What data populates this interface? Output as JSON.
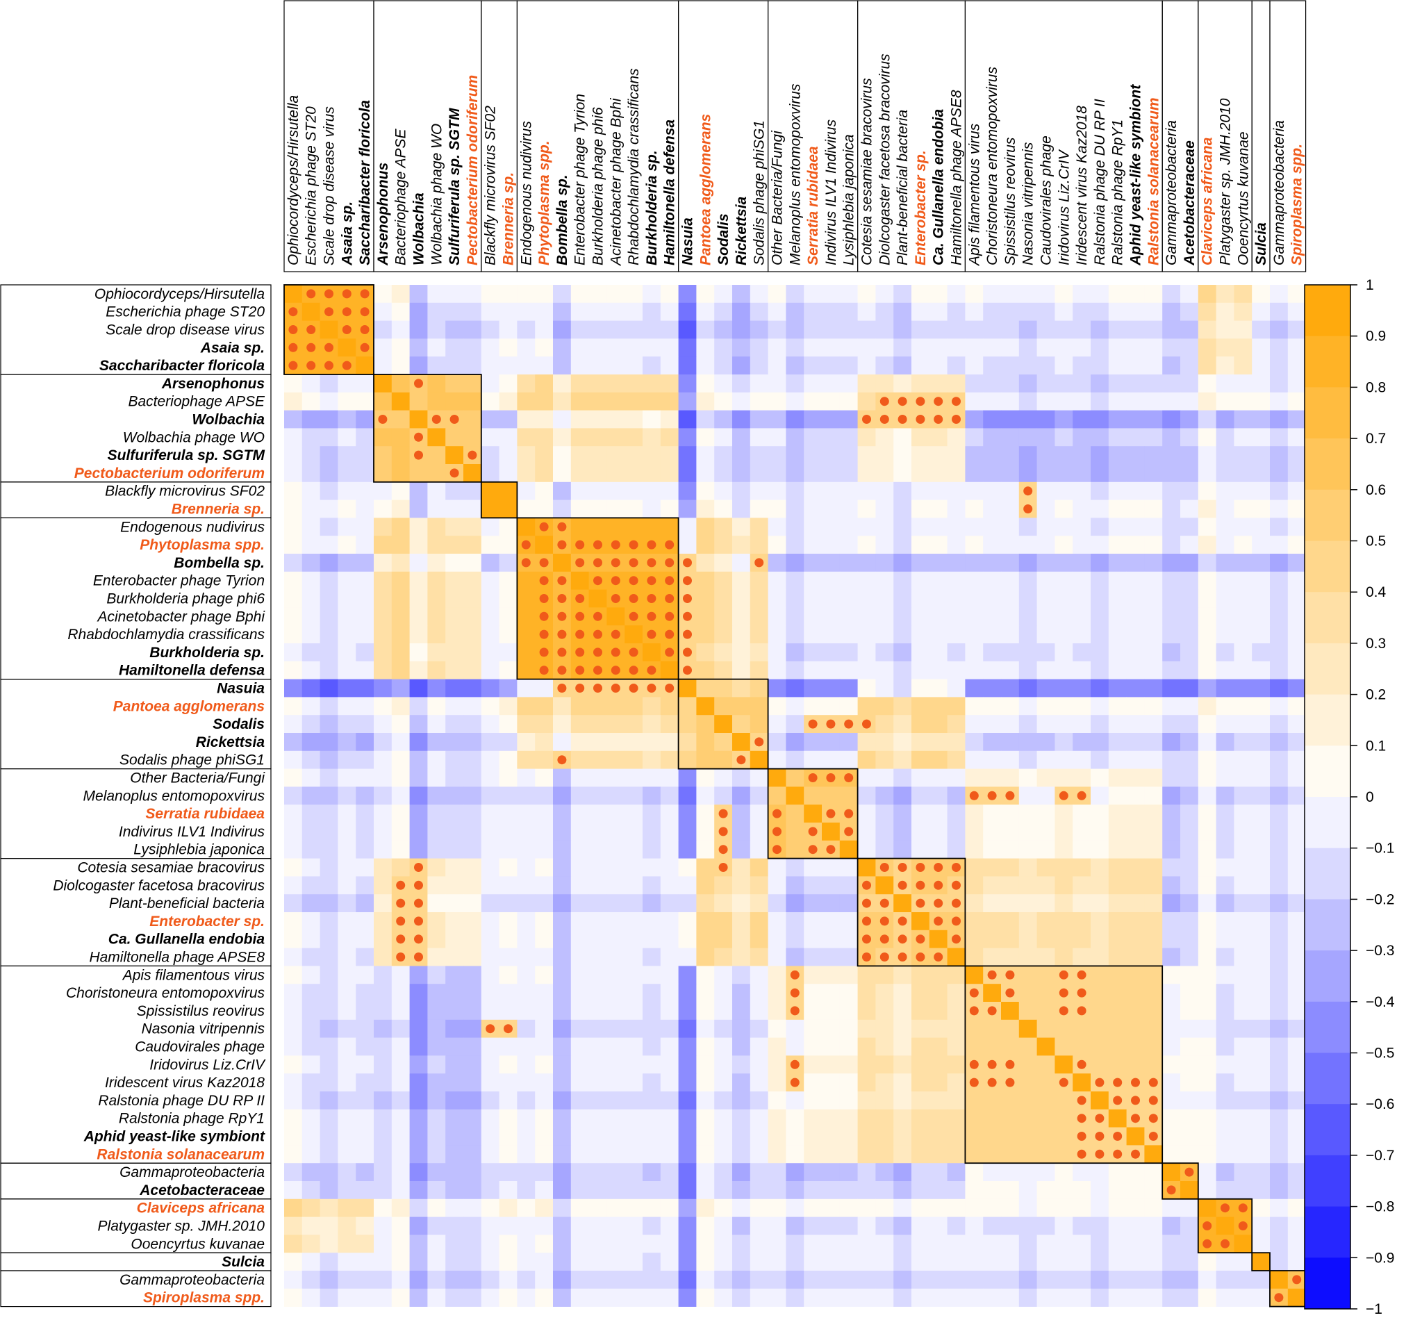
{
  "chart_data": {
    "type": "heatmap",
    "title": "",
    "value_range": [
      -1,
      1
    ],
    "colorbar": {
      "ticks": [
        1,
        0.9,
        0.8,
        0.7,
        0.6,
        0.5,
        0.4,
        0.3,
        0.2,
        0.1,
        0,
        -0.1,
        -0.2,
        -0.3,
        -0.4,
        -0.5,
        -0.6,
        -0.7,
        -0.8,
        -0.9,
        -1
      ],
      "tick_labels": [
        "1",
        "0.9",
        "0.8",
        "0.7",
        "0.6",
        "0.5",
        "0.4",
        "0.3",
        "0.2",
        "0.1",
        "0",
        "−0.1",
        "−0.2",
        "−0.3",
        "−0.4",
        "−0.5",
        "−0.6",
        "−0.7",
        "−0.8",
        "−0.9",
        "−1"
      ],
      "steps": 20,
      "low_color": "#0000ff",
      "mid_color": "#ffffff",
      "high_color": "#ffa500",
      "position": "right"
    },
    "label_colors": {
      "normal": "#000000",
      "highlight": "#f05a1a"
    },
    "significance_dot_color": "#f05a1a",
    "labels": [
      {
        "name": "Ophiocordyceps/Hirsutella",
        "style": "italic",
        "color": "normal"
      },
      {
        "name": "Escherichia phage ST20",
        "style": "italic",
        "color": "normal"
      },
      {
        "name": "Scale drop disease virus",
        "style": "italic",
        "color": "normal"
      },
      {
        "name": "Asaia sp.",
        "style": "bold-italic",
        "color": "normal"
      },
      {
        "name": "Saccharibacter floricola",
        "style": "bold-italic",
        "color": "normal"
      },
      {
        "name": "Arsenophonus",
        "style": "bold-italic",
        "color": "normal"
      },
      {
        "name": "Bacteriophage APSE",
        "style": "italic",
        "color": "normal"
      },
      {
        "name": "Wolbachia",
        "style": "bold-italic",
        "color": "normal"
      },
      {
        "name": "Wolbachia phage WO",
        "style": "italic",
        "color": "normal"
      },
      {
        "name": "Sulfuriferula sp. SGTM",
        "style": "bold-italic",
        "color": "normal"
      },
      {
        "name": "Pectobacterium odoriferum",
        "style": "bold-italic",
        "color": "highlight"
      },
      {
        "name": "Blackfly microvirus SF02",
        "style": "italic",
        "color": "normal"
      },
      {
        "name": "Brenneria sp.",
        "style": "bold-italic",
        "color": "highlight"
      },
      {
        "name": "Endogenous nudivirus",
        "style": "italic",
        "color": "normal"
      },
      {
        "name": "Phytoplasma spp.",
        "style": "bold-italic",
        "color": "highlight"
      },
      {
        "name": "Bombella sp.",
        "style": "bold-italic",
        "color": "normal"
      },
      {
        "name": "Enterobacter phage Tyrion",
        "style": "italic",
        "color": "normal"
      },
      {
        "name": "Burkholderia phage phi6",
        "style": "italic",
        "color": "normal"
      },
      {
        "name": "Acinetobacter phage Bphi",
        "style": "italic",
        "color": "normal"
      },
      {
        "name": "Rhabdochlamydia crassificans",
        "style": "italic",
        "color": "normal"
      },
      {
        "name": "Burkholderia sp.",
        "style": "bold-italic",
        "color": "normal"
      },
      {
        "name": "Hamiltonella defensa",
        "style": "bold-italic",
        "color": "normal"
      },
      {
        "name": "Nasuia",
        "style": "bold-italic",
        "color": "normal"
      },
      {
        "name": "Pantoea agglomerans",
        "style": "bold-italic",
        "color": "highlight"
      },
      {
        "name": "Sodalis",
        "style": "bold-italic",
        "color": "normal"
      },
      {
        "name": "Rickettsia",
        "style": "bold-italic",
        "color": "normal"
      },
      {
        "name": "Sodalis phage phiSG1",
        "style": "italic",
        "color": "normal"
      },
      {
        "name": "Other Bacteria/Fungi",
        "style": "italic",
        "color": "normal"
      },
      {
        "name": "Melanoplus entomopoxvirus",
        "style": "italic",
        "color": "normal"
      },
      {
        "name": "Serratia rubidaea",
        "style": "bold-italic",
        "color": "highlight"
      },
      {
        "name": "Indivirus ILV1 Indivirus",
        "style": "italic",
        "color": "normal"
      },
      {
        "name": "Lysiphlebia japonica",
        "style": "italic",
        "color": "normal"
      },
      {
        "name": "Cotesia sesamiae bracovirus",
        "style": "italic",
        "color": "normal"
      },
      {
        "name": "Diolcogaster facetosa bracovirus",
        "style": "italic",
        "color": "normal"
      },
      {
        "name": "Plant-beneficial bacteria",
        "style": "italic",
        "color": "normal"
      },
      {
        "name": "Enterobacter sp.",
        "style": "bold-italic",
        "color": "highlight"
      },
      {
        "name": "Ca. Gullanella endobia",
        "style": "bold-italic",
        "color": "normal"
      },
      {
        "name": "Hamiltonella phage APSE8",
        "style": "italic",
        "color": "normal"
      },
      {
        "name": "Apis filamentous virus",
        "style": "italic",
        "color": "normal"
      },
      {
        "name": "Choristoneura entomopoxvirus",
        "style": "italic",
        "color": "normal"
      },
      {
        "name": "Spissistilus reovirus",
        "style": "italic",
        "color": "normal"
      },
      {
        "name": "Nasonia vitripennis",
        "style": "italic",
        "color": "normal"
      },
      {
        "name": "Caudovirales phage",
        "style": "italic",
        "color": "normal"
      },
      {
        "name": "Iridovirus Liz.CrIV",
        "style": "italic",
        "color": "normal"
      },
      {
        "name": "Iridescent virus Kaz2018",
        "style": "italic",
        "color": "normal"
      },
      {
        "name": "Ralstonia phage DU RP II",
        "style": "italic",
        "color": "normal"
      },
      {
        "name": "Ralstonia phage RpY1",
        "style": "italic",
        "color": "normal"
      },
      {
        "name": "Aphid yeast-like symbiont",
        "style": "bold-italic",
        "color": "normal"
      },
      {
        "name": "Ralstonia solanacearum",
        "style": "bold-italic",
        "color": "highlight"
      },
      {
        "name": "Gammaproteobacteria",
        "style": "italic",
        "color": "normal"
      },
      {
        "name": "Acetobacteraceae",
        "style": "bold-italic",
        "color": "normal"
      },
      {
        "name": "Claviceps africana",
        "style": "bold-italic",
        "color": "highlight"
      },
      {
        "name": "Platygaster sp. JMH.2010",
        "style": "italic",
        "color": "normal"
      },
      {
        "name": "Ooencyrtus kuvanae",
        "style": "italic",
        "color": "normal"
      },
      {
        "name": "Sulcia",
        "style": "bold-italic",
        "color": "normal"
      },
      {
        "name": "Gammaproteobacteria",
        "style": "italic",
        "color": "normal"
      },
      {
        "name": "Spiroplasma spp.",
        "style": "bold-italic",
        "color": "highlight"
      }
    ],
    "clusters": [
      [
        0,
        4
      ],
      [
        5,
        10
      ],
      [
        11,
        12
      ],
      [
        13,
        21
      ],
      [
        22,
        26
      ],
      [
        27,
        31
      ],
      [
        32,
        37
      ],
      [
        38,
        48
      ],
      [
        49,
        50
      ],
      [
        51,
        53
      ],
      [
        54,
        54
      ],
      [
        55,
        56
      ]
    ],
    "block_values": [
      0.85,
      0.6,
      0.95,
      0.8,
      0.5,
      0.6,
      0.5,
      0.45,
      0.75,
      0.8,
      1.0,
      0.7
    ],
    "row_bias": [
      0.1,
      0.0,
      -0.05,
      0.05,
      0.0,
      0.05,
      0.15,
      -0.2,
      0.0,
      -0.05,
      -0.05,
      0.05,
      0.1,
      0.05,
      0.1,
      -0.15,
      0.05,
      0.05,
      0.05,
      0.05,
      0.0,
      0.05,
      -0.35,
      0.15,
      0.05,
      -0.1,
      0.05,
      0.05,
      -0.1,
      0.0,
      0.0,
      0.0,
      0.05,
      0.0,
      -0.1,
      0.05,
      0.05,
      0.0,
      0.05,
      0.0,
      0.0,
      -0.05,
      0.0,
      0.05,
      0.0,
      -0.05,
      0.05,
      0.05,
      0.05,
      -0.1,
      -0.05,
      0.15,
      0.0,
      0.05,
      0.05,
      -0.05,
      0.05
    ],
    "block_pairs": [
      {
        "a": 1,
        "b": 3,
        "value": 0.3
      },
      {
        "a": 1,
        "b": 6,
        "value": 0.2
      },
      {
        "a": 1,
        "b": 7,
        "value": -0.2
      },
      {
        "a": 3,
        "b": 4,
        "value": 0.25
      },
      {
        "a": 4,
        "b": 6,
        "value": 0.35
      },
      {
        "a": 5,
        "b": 7,
        "value": 0.1
      },
      {
        "a": 6,
        "b": 7,
        "value": 0.3
      },
      {
        "a": 7,
        "b": 8,
        "value": 0.1
      },
      {
        "a": 0,
        "b": 4,
        "value": -0.2
      },
      {
        "a": 0,
        "b": 9,
        "value": 0.2
      },
      {
        "a": 3,
        "b": 10,
        "value": -0.15
      }
    ],
    "significant_cells": [
      [
        0,
        1
      ],
      [
        0,
        2
      ],
      [
        0,
        3
      ],
      [
        0,
        4
      ],
      [
        1,
        0
      ],
      [
        1,
        2
      ],
      [
        1,
        3
      ],
      [
        1,
        4
      ],
      [
        2,
        0
      ],
      [
        2,
        1
      ],
      [
        2,
        3
      ],
      [
        2,
        4
      ],
      [
        3,
        0
      ],
      [
        3,
        1
      ],
      [
        3,
        2
      ],
      [
        3,
        4
      ],
      [
        4,
        0
      ],
      [
        4,
        1
      ],
      [
        4,
        2
      ],
      [
        4,
        3
      ],
      [
        5,
        7
      ],
      [
        7,
        5
      ],
      [
        7,
        9
      ],
      [
        8,
        7
      ],
      [
        9,
        10
      ],
      [
        10,
        9
      ],
      [
        6,
        33
      ],
      [
        6,
        34
      ],
      [
        6,
        35
      ],
      [
        6,
        36
      ],
      [
        6,
        37
      ],
      [
        13,
        14
      ],
      [
        13,
        15
      ],
      [
        14,
        13
      ],
      [
        14,
        15
      ],
      [
        14,
        16
      ],
      [
        14,
        17
      ],
      [
        14,
        18
      ],
      [
        14,
        19
      ],
      [
        14,
        20
      ],
      [
        14,
        21
      ],
      [
        15,
        13
      ],
      [
        15,
        14
      ],
      [
        15,
        16
      ],
      [
        15,
        17
      ],
      [
        15,
        18
      ],
      [
        15,
        19
      ],
      [
        15,
        20
      ],
      [
        15,
        21
      ],
      [
        15,
        22
      ],
      [
        15,
        26
      ],
      [
        16,
        14
      ],
      [
        16,
        15
      ],
      [
        16,
        17
      ],
      [
        16,
        18
      ],
      [
        16,
        19
      ],
      [
        16,
        20
      ],
      [
        16,
        21
      ],
      [
        16,
        22
      ],
      [
        17,
        14
      ],
      [
        17,
        15
      ],
      [
        17,
        16
      ],
      [
        17,
        18
      ],
      [
        17,
        19
      ],
      [
        17,
        20
      ],
      [
        17,
        21
      ],
      [
        17,
        22
      ],
      [
        18,
        14
      ],
      [
        18,
        15
      ],
      [
        18,
        16
      ],
      [
        18,
        17
      ],
      [
        18,
        19
      ],
      [
        18,
        20
      ],
      [
        18,
        21
      ],
      [
        18,
        22
      ],
      [
        19,
        14
      ],
      [
        19,
        15
      ],
      [
        19,
        16
      ],
      [
        19,
        17
      ],
      [
        19,
        18
      ],
      [
        19,
        20
      ],
      [
        19,
        21
      ],
      [
        19,
        22
      ],
      [
        20,
        14
      ],
      [
        20,
        15
      ],
      [
        20,
        16
      ],
      [
        20,
        17
      ],
      [
        20,
        18
      ],
      [
        20,
        19
      ],
      [
        20,
        21
      ],
      [
        20,
        22
      ],
      [
        21,
        14
      ],
      [
        21,
        15
      ],
      [
        21,
        16
      ],
      [
        21,
        17
      ],
      [
        21,
        18
      ],
      [
        21,
        19
      ],
      [
        21,
        20
      ],
      [
        21,
        22
      ],
      [
        22,
        15
      ],
      [
        22,
        16
      ],
      [
        22,
        17
      ],
      [
        22,
        18
      ],
      [
        22,
        19
      ],
      [
        22,
        20
      ],
      [
        22,
        21
      ],
      [
        24,
        30
      ],
      [
        24,
        31
      ],
      [
        24,
        32
      ],
      [
        25,
        26
      ],
      [
        26,
        15
      ],
      [
        26,
        25
      ],
      [
        27,
        29
      ],
      [
        27,
        30
      ],
      [
        27,
        31
      ],
      [
        28,
        38
      ],
      [
        28,
        39
      ],
      [
        28,
        40
      ],
      [
        28,
        43
      ],
      [
        28,
        44
      ],
      [
        29,
        24
      ],
      [
        29,
        27
      ],
      [
        29,
        30
      ],
      [
        29,
        31
      ],
      [
        30,
        24
      ],
      [
        30,
        27
      ],
      [
        30,
        29
      ],
      [
        31,
        24
      ],
      [
        31,
        27
      ],
      [
        31,
        29
      ],
      [
        31,
        30
      ],
      [
        32,
        7
      ],
      [
        32,
        33
      ],
      [
        32,
        34
      ],
      [
        32,
        35
      ],
      [
        32,
        36
      ],
      [
        32,
        37
      ],
      [
        33,
        7
      ],
      [
        33,
        32
      ],
      [
        33,
        34
      ],
      [
        33,
        35
      ],
      [
        33,
        36
      ],
      [
        33,
        37
      ],
      [
        34,
        7
      ],
      [
        34,
        32
      ],
      [
        34,
        33
      ],
      [
        34,
        35
      ],
      [
        34,
        36
      ],
      [
        34,
        37
      ],
      [
        35,
        7
      ],
      [
        35,
        32
      ],
      [
        35,
        33
      ],
      [
        35,
        34
      ],
      [
        35,
        36
      ],
      [
        35,
        37
      ],
      [
        36,
        7
      ],
      [
        36,
        32
      ],
      [
        36,
        33
      ],
      [
        36,
        34
      ],
      [
        36,
        35
      ],
      [
        36,
        37
      ],
      [
        37,
        7
      ],
      [
        37,
        32
      ],
      [
        37,
        33
      ],
      [
        37,
        34
      ],
      [
        37,
        35
      ],
      [
        37,
        36
      ],
      [
        38,
        28
      ],
      [
        38,
        39
      ],
      [
        38,
        40
      ],
      [
        38,
        43
      ],
      [
        38,
        44
      ],
      [
        39,
        28
      ],
      [
        39,
        38
      ],
      [
        39,
        40
      ],
      [
        39,
        43
      ],
      [
        39,
        44
      ],
      [
        40,
        28
      ],
      [
        40,
        38
      ],
      [
        40,
        39
      ],
      [
        40,
        43
      ],
      [
        40,
        44
      ],
      [
        41,
        11
      ],
      [
        41,
        12
      ],
      [
        43,
        28
      ],
      [
        43,
        38
      ],
      [
        43,
        39
      ],
      [
        43,
        40
      ],
      [
        43,
        44
      ],
      [
        44,
        28
      ],
      [
        44,
        38
      ],
      [
        44,
        39
      ],
      [
        44,
        40
      ],
      [
        44,
        43
      ],
      [
        44,
        45
      ],
      [
        44,
        46
      ],
      [
        44,
        47
      ],
      [
        44,
        48
      ],
      [
        45,
        44
      ],
      [
        45,
        46
      ],
      [
        45,
        47
      ],
      [
        45,
        48
      ],
      [
        46,
        44
      ],
      [
        46,
        45
      ],
      [
        46,
        47
      ],
      [
        46,
        48
      ],
      [
        47,
        44
      ],
      [
        47,
        45
      ],
      [
        47,
        46
      ],
      [
        47,
        48
      ],
      [
        48,
        44
      ],
      [
        48,
        45
      ],
      [
        48,
        46
      ],
      [
        48,
        47
      ],
      [
        49,
        50
      ],
      [
        50,
        49
      ],
      [
        51,
        52
      ],
      [
        51,
        53
      ],
      [
        52,
        51
      ],
      [
        52,
        53
      ],
      [
        53,
        51
      ],
      [
        53,
        52
      ],
      [
        55,
        56
      ],
      [
        56,
        55
      ]
    ]
  }
}
